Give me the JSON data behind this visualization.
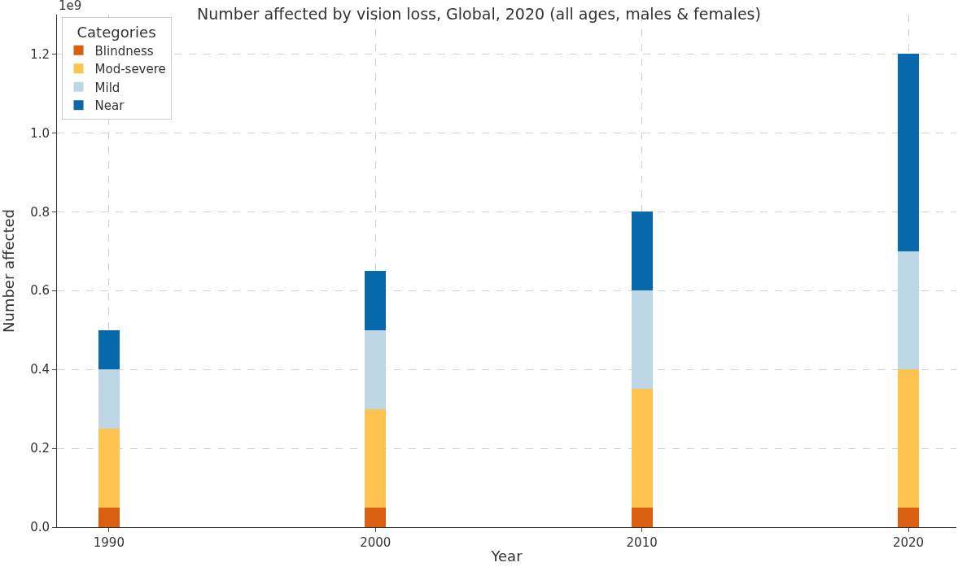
{
  "chart_data": {
    "type": "bar",
    "stacked": true,
    "title": "Number affected by vision loss, Global, 2020 (all ages, males & females)",
    "xlabel": "Year",
    "ylabel": "Number affected",
    "legend_title": "Categories",
    "x": [
      1990,
      2000,
      2010,
      2020
    ],
    "series": [
      {
        "name": "Blindness",
        "color": "#d95f0e",
        "values": [
          0.05,
          0.05,
          0.05,
          0.05
        ]
      },
      {
        "name": "Mod-severe",
        "color": "#fec44f",
        "values": [
          0.2,
          0.25,
          0.3,
          0.35
        ]
      },
      {
        "name": "Mild",
        "color": "#bdd7e7",
        "values": [
          0.15,
          0.2,
          0.25,
          0.3
        ]
      },
      {
        "name": "Near",
        "color": "#0868ac",
        "values": [
          0.1,
          0.15,
          0.2,
          0.5
        ]
      }
    ],
    "xlim": [
      1988.05,
      2021.8
    ],
    "xticks": [
      1990,
      2000,
      2010,
      2020
    ],
    "ylim": [
      0,
      1.3
    ],
    "yticks": [
      {
        "value": 0,
        "label": "0.0"
      },
      0.2,
      0.4,
      0.6,
      0.8,
      {
        "value": 1.0,
        "label": "1.0"
      },
      1.2
    ],
    "annotations": [
      "1e9"
    ],
    "grid": true,
    "legend": "top left"
  }
}
